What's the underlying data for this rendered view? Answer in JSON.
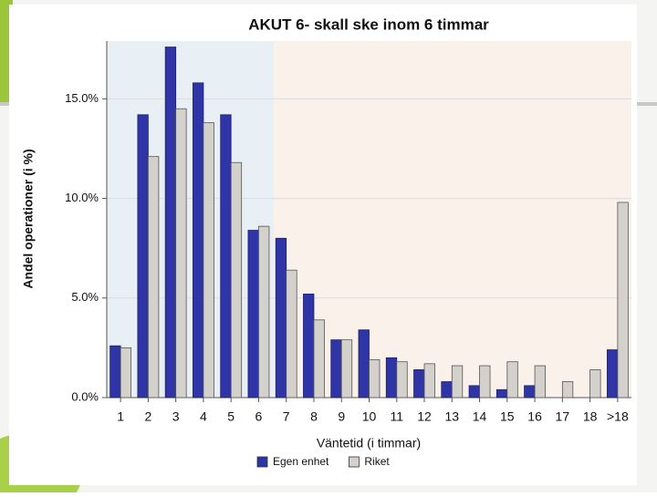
{
  "chart_data": {
    "type": "bar",
    "title": "AKUT 6- skall ske inom 6 timmar",
    "x_label": "Väntetid (i timmar)",
    "y_label": "Andel operationer (i %)",
    "categories": [
      "1",
      "2",
      "3",
      "4",
      "5",
      "6",
      "7",
      "8",
      "9",
      "10",
      "11",
      "12",
      "13",
      "14",
      "15",
      "16",
      "17",
      "18",
      ">18"
    ],
    "series": [
      {
        "name": "Egen enhet",
        "color": "#2f35a6",
        "values": [
          2.6,
          14.2,
          17.6,
          15.8,
          14.2,
          8.4,
          8.0,
          5.2,
          2.9,
          3.4,
          2.0,
          1.4,
          0.8,
          0.6,
          0.4,
          0.6,
          0,
          0,
          2.4
        ]
      },
      {
        "name": "Riket",
        "color": "#d4d1cd",
        "values": [
          2.5,
          12.1,
          14.5,
          13.8,
          11.8,
          8.6,
          6.4,
          3.9,
          2.9,
          1.9,
          1.8,
          1.7,
          1.6,
          1.6,
          1.8,
          1.6,
          0.8,
          1.4,
          9.8
        ]
      }
    ],
    "ylim": [
      0,
      17.9
    ],
    "yticks": [
      {
        "value": 0,
        "label": "0.0%"
      },
      {
        "value": 5,
        "label": "5.0%"
      },
      {
        "value": 10,
        "label": "10.0%"
      },
      {
        "value": 15,
        "label": "15.0%"
      }
    ],
    "grid": true
  }
}
